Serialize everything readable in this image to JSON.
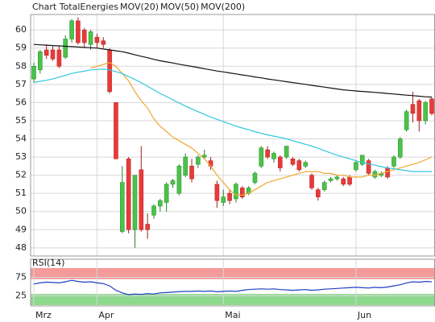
{
  "chart_data": [
    {
      "type": "candlestick",
      "title": "Chart TotalEnergies",
      "title_color": "#e03030",
      "categories": [
        "Mrz",
        null,
        null,
        null,
        null,
        null,
        null,
        null,
        null,
        null,
        "Apr",
        null,
        null,
        null,
        null,
        null,
        null,
        null,
        null,
        null,
        null,
        null,
        null,
        null,
        null,
        null,
        null,
        null,
        null,
        null,
        "Mai",
        null,
        null,
        null,
        null,
        null,
        null,
        null,
        null,
        null,
        null,
        null,
        null,
        null,
        null,
        null,
        null,
        null,
        null,
        null,
        null,
        "Jun",
        null,
        null,
        null,
        null,
        null,
        null,
        null,
        null,
        null,
        null,
        null,
        null
      ],
      "open": [
        57.3,
        57.8,
        58.9,
        58.9,
        58.9,
        58.5,
        59.5,
        60.5,
        60.0,
        59.2,
        59.6,
        59.4,
        58.9,
        56.0,
        48.9,
        52.9,
        49.0,
        52.3,
        49.3,
        49.8,
        50.3,
        50.5,
        51.5,
        51.0,
        52.0,
        52.5,
        52.6,
        53.0,
        52.8,
        51.5,
        50.5,
        51.0,
        50.7,
        51.3,
        51.0,
        51.6,
        52.5,
        53.4,
        52.9,
        53.0,
        53.0,
        52.9,
        52.8,
        52.5,
        52.0,
        51.2,
        51.2,
        51.7,
        51.8,
        51.8,
        51.9,
        52.3,
        52.6,
        52.8,
        51.9,
        52.0,
        52.4,
        52.5,
        53.0,
        54.5,
        55.9,
        56.1,
        55.0,
        56.2
      ],
      "high": [
        58.2,
        58.9,
        59.2,
        59.1,
        59.1,
        59.7,
        60.6,
        60.7,
        60.1,
        60.0,
        59.8,
        59.6,
        59.0,
        56.0,
        52.5,
        53.0,
        52.0,
        53.6,
        49.9,
        50.4,
        50.7,
        51.6,
        51.8,
        52.6,
        53.2,
        52.9,
        53.1,
        53.4,
        53.0,
        51.7,
        51.2,
        51.2,
        51.6,
        51.4,
        51.4,
        52.2,
        53.6,
        53.6,
        53.3,
        53.1,
        53.6,
        53.0,
        52.9,
        52.8,
        52.1,
        51.3,
        51.7,
        51.9,
        52.0,
        51.9,
        52.0,
        52.8,
        53.1,
        52.9,
        52.3,
        52.2,
        52.5,
        53.1,
        54.1,
        55.6,
        56.6,
        56.2,
        56.1,
        56.3
      ],
      "low": [
        57.1,
        57.6,
        58.4,
        58.3,
        57.9,
        58.4,
        59.3,
        59.2,
        59.0,
        58.9,
        59.0,
        59.0,
        56.5,
        52.9,
        48.8,
        48.8,
        48.0,
        48.9,
        48.5,
        49.6,
        50.0,
        50.0,
        51.3,
        50.9,
        51.9,
        51.6,
        52.4,
        52.9,
        52.3,
        50.2,
        50.3,
        50.4,
        50.5,
        50.7,
        50.9,
        51.5,
        52.4,
        52.9,
        52.7,
        52.2,
        52.9,
        52.5,
        52.2,
        52.4,
        51.2,
        50.6,
        51.1,
        51.6,
        51.7,
        51.4,
        51.4,
        52.2,
        52.5,
        52.0,
        51.8,
        51.9,
        51.8,
        52.4,
        52.9,
        54.4,
        54.9,
        54.4,
        54.8,
        55.3
      ],
      "close": [
        58.0,
        58.8,
        58.6,
        58.4,
        58.0,
        59.5,
        60.5,
        59.3,
        59.3,
        59.9,
        59.3,
        59.2,
        56.6,
        52.9,
        51.6,
        49.0,
        52.0,
        49.0,
        49.0,
        50.3,
        50.6,
        51.5,
        51.7,
        52.5,
        53.0,
        51.8,
        53.0,
        53.1,
        52.5,
        50.6,
        50.8,
        50.6,
        51.5,
        50.8,
        51.3,
        52.1,
        53.5,
        53.0,
        53.2,
        52.4,
        53.6,
        52.6,
        52.3,
        52.7,
        51.3,
        50.8,
        51.6,
        51.8,
        51.9,
        51.5,
        51.5,
        52.7,
        53.1,
        52.1,
        52.2,
        52.1,
        51.9,
        53.0,
        54.0,
        55.5,
        55.4,
        55.0,
        56.0,
        55.4
      ],
      "up_color": "#4cc24c",
      "down_color": "#e83a3a",
      "series": [
        {
          "name": "MOV(20)",
          "color": "#f0a830",
          "values": [
            null,
            null,
            null,
            null,
            null,
            null,
            null,
            null,
            null,
            57.9,
            58.0,
            58.1,
            58.2,
            58.0,
            57.6,
            57.2,
            56.6,
            56.1,
            55.7,
            55.1,
            54.7,
            54.4,
            54.1,
            53.9,
            53.7,
            53.5,
            53.2,
            52.9,
            52.5,
            52.0,
            51.6,
            51.2,
            50.9,
            50.9,
            51.0,
            51.2,
            51.4,
            51.6,
            51.7,
            51.8,
            51.9,
            52.0,
            52.1,
            52.2,
            52.2,
            52.2,
            52.1,
            52.1,
            52.0,
            52.0,
            51.9,
            51.9,
            51.9,
            52.0,
            52.0,
            52.1,
            52.2,
            52.3,
            52.4,
            52.5,
            52.6,
            52.7,
            52.85,
            53.0
          ]
        },
        {
          "name": "MOV(50)",
          "color": "#30c8e0",
          "values": [
            57.1,
            57.17,
            57.23,
            57.3,
            57.4,
            57.5,
            57.6,
            57.67,
            57.73,
            57.8,
            57.82,
            57.84,
            57.8,
            57.7,
            57.6,
            57.43,
            57.27,
            57.1,
            56.9,
            56.7,
            56.5,
            56.33,
            56.15,
            55.98,
            55.8,
            55.65,
            55.5,
            55.35,
            55.2,
            55.08,
            54.95,
            54.83,
            54.7,
            54.6,
            54.5,
            54.4,
            54.3,
            54.22,
            54.15,
            54.08,
            54.0,
            53.9,
            53.8,
            53.7,
            53.6,
            53.48,
            53.35,
            53.23,
            53.1,
            53.0,
            52.9,
            52.8,
            52.7,
            52.62,
            52.55,
            52.47,
            52.4,
            52.35,
            52.3,
            52.25,
            52.2,
            52.2,
            52.2,
            52.2
          ]
        },
        {
          "name": "MOV(200)",
          "color": "#111111",
          "values": [
            59.2,
            59.18,
            59.16,
            59.14,
            59.12,
            59.1,
            59.08,
            59.06,
            59.04,
            59.02,
            59.0,
            58.95,
            58.9,
            58.85,
            58.8,
            58.72,
            58.63,
            58.55,
            58.47,
            58.38,
            58.3,
            58.24,
            58.18,
            58.11,
            58.05,
            57.99,
            57.93,
            57.86,
            57.8,
            57.74,
            57.69,
            57.63,
            57.58,
            57.52,
            57.47,
            57.41,
            57.36,
            57.3,
            57.25,
            57.2,
            57.15,
            57.1,
            57.05,
            57.0,
            56.95,
            56.9,
            56.85,
            56.8,
            56.75,
            56.7,
            56.67,
            56.64,
            56.61,
            56.59,
            56.56,
            56.53,
            56.5,
            56.47,
            56.44,
            56.41,
            56.38,
            56.35,
            56.32,
            56.3
          ]
        }
      ],
      "ylim": [
        47.55,
        60.85
      ],
      "yticks": [
        48,
        49,
        50,
        51,
        52,
        53,
        54,
        55,
        56,
        57,
        58,
        59,
        60
      ],
      "grid": true
    },
    {
      "type": "line",
      "title": "RSI(14)",
      "series": [
        {
          "name": "RSI(14)",
          "color": "#2040c0",
          "values": [
            57,
            60,
            62,
            61,
            60,
            63,
            67,
            64,
            62,
            63,
            60,
            58,
            52,
            40,
            33,
            28,
            30,
            29,
            31,
            30,
            33,
            34,
            35,
            36,
            37,
            37,
            38,
            37,
            38,
            36,
            37,
            38,
            37,
            40,
            42,
            43,
            44,
            43,
            44,
            42,
            41,
            40,
            41,
            42,
            40,
            41,
            43,
            44,
            45,
            46,
            47,
            48,
            47,
            46,
            48,
            47,
            49,
            52,
            55,
            60,
            63,
            62,
            64,
            63
          ]
        }
      ],
      "bands": [
        {
          "from": 70,
          "to": 100,
          "color": "#f59a9a"
        },
        {
          "from": 0,
          "to": 30,
          "color": "#8ed88e"
        }
      ],
      "ylim": [
        0,
        100
      ],
      "yticks": [
        25,
        75
      ],
      "grid": true
    }
  ]
}
